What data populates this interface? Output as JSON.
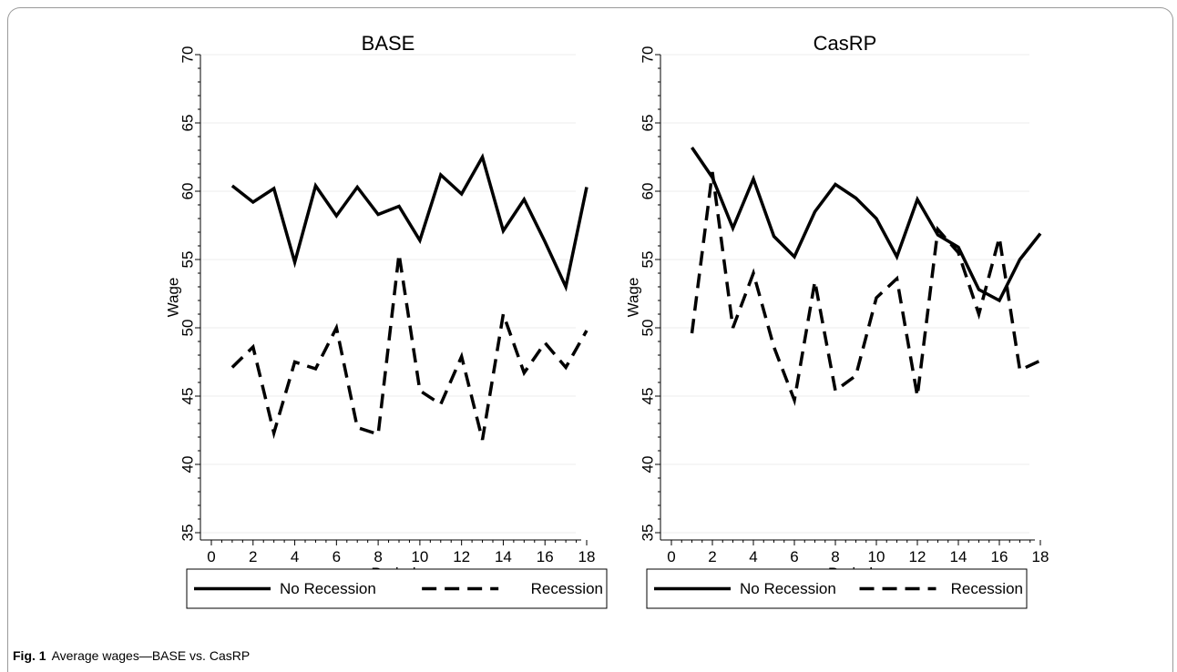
{
  "chart_data": [
    {
      "type": "line",
      "title": "BASE",
      "xlabel": "Period",
      "ylabel": "Wage",
      "xlim": [
        0,
        18
      ],
      "ylim": [
        35,
        70
      ],
      "xticks": [
        0,
        2,
        4,
        6,
        8,
        10,
        12,
        14,
        16,
        18
      ],
      "yticks": [
        35,
        40,
        45,
        50,
        55,
        60,
        65,
        70
      ],
      "grid": true,
      "legend_position": "bottom",
      "x": [
        1,
        2,
        3,
        4,
        5,
        6,
        7,
        8,
        9,
        10,
        11,
        12,
        13,
        14,
        15,
        16,
        17,
        18
      ],
      "series": [
        {
          "name": "No Recession",
          "style": "solid",
          "values": [
            60.4,
            59.2,
            60.2,
            54.8,
            60.4,
            58.2,
            60.3,
            58.3,
            58.9,
            56.4,
            61.2,
            59.8,
            62.5,
            57.1,
            59.4,
            56.3,
            53.0,
            60.3
          ]
        },
        {
          "name": "Recession",
          "style": "dashed",
          "values": [
            47.1,
            48.6,
            42.3,
            47.5,
            47.0,
            50.0,
            42.7,
            42.2,
            55.4,
            45.4,
            44.4,
            47.9,
            41.8,
            51.0,
            46.7,
            48.9,
            47.1,
            49.8
          ]
        }
      ]
    },
    {
      "type": "line",
      "title": "CasRP",
      "xlabel": "Period",
      "ylabel": "Wage",
      "xlim": [
        0,
        18
      ],
      "ylim": [
        35,
        70
      ],
      "xticks": [
        0,
        2,
        4,
        6,
        8,
        10,
        12,
        14,
        16,
        18
      ],
      "yticks": [
        35,
        40,
        45,
        50,
        55,
        60,
        65,
        70
      ],
      "grid": true,
      "legend_position": "bottom",
      "x": [
        1,
        2,
        3,
        4,
        5,
        6,
        7,
        8,
        9,
        10,
        11,
        12,
        13,
        14,
        15,
        16,
        17,
        18
      ],
      "series": [
        {
          "name": "No Recession",
          "style": "solid",
          "values": [
            63.2,
            61.0,
            57.3,
            60.9,
            56.7,
            55.2,
            58.5,
            60.5,
            59.5,
            58.0,
            55.2,
            59.4,
            56.8,
            55.9,
            52.8,
            52.0,
            55.0,
            56.9
          ]
        },
        {
          "name": "Recession",
          "style": "dashed",
          "values": [
            49.6,
            61.4,
            50.0,
            54.0,
            48.6,
            44.7,
            53.4,
            45.4,
            46.5,
            52.2,
            53.6,
            45.0,
            57.2,
            55.5,
            51.0,
            56.6,
            46.9,
            47.6
          ]
        }
      ]
    }
  ],
  "caption": {
    "label": "Fig. 1",
    "text": "Average wages—BASE vs. CasRP"
  }
}
